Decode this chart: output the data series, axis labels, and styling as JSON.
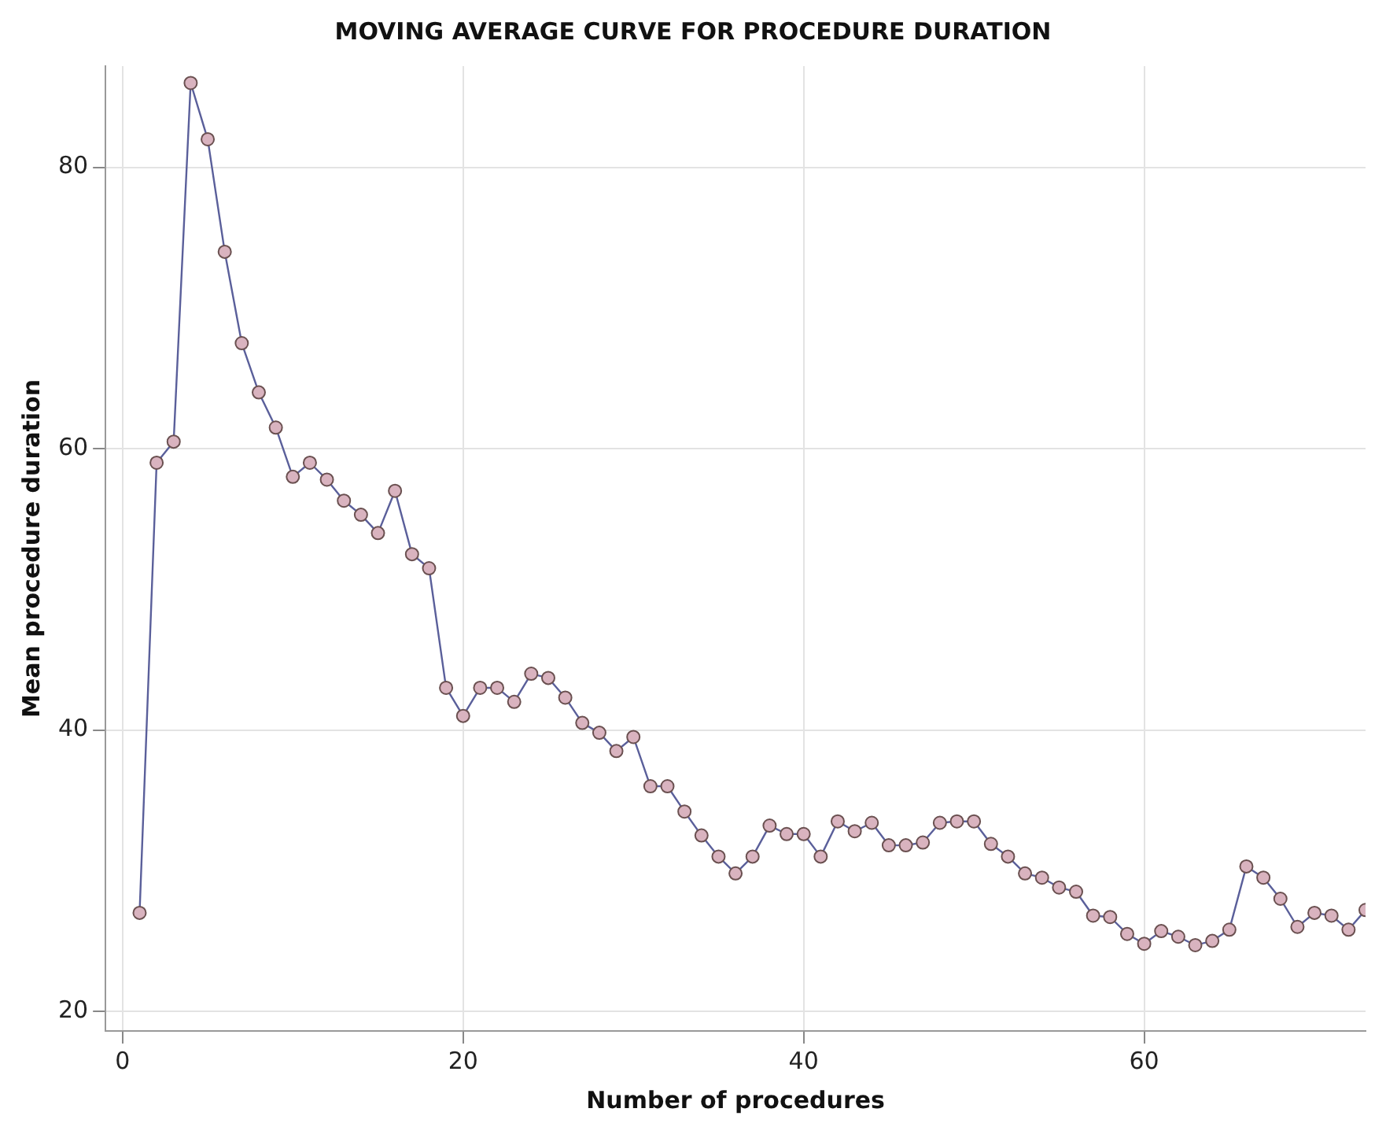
{
  "chart_data": {
    "type": "line",
    "title": "MOVING AVERAGE CURVE FOR PROCEDURE DURATION",
    "xlabel": "Number of procedures",
    "ylabel": "Mean procedure duration",
    "x": [
      1,
      2,
      3,
      4,
      5,
      6,
      7,
      8,
      9,
      10,
      11,
      12,
      13,
      14,
      15,
      16,
      17,
      18,
      19,
      20,
      21,
      22,
      23,
      24,
      25,
      26,
      27,
      28,
      29,
      30,
      31,
      32,
      33,
      34,
      35,
      36,
      37,
      38,
      39,
      40,
      41,
      42,
      43,
      44,
      45,
      46,
      47,
      48,
      49,
      50,
      51,
      52,
      53,
      54,
      55,
      56,
      57,
      58,
      59,
      60,
      61,
      62,
      63,
      64,
      65,
      66,
      67,
      68,
      69,
      70,
      71,
      72,
      73
    ],
    "series": [
      {
        "color": "#5a5f9a",
        "values": [
          27,
          59,
          60.5,
          86,
          82,
          74,
          67.5,
          64,
          61.5,
          58,
          59,
          57.8,
          56.3,
          55.3,
          54,
          57,
          52.5,
          51.5,
          43,
          41,
          43,
          43,
          42,
          44,
          43.7,
          42.3,
          40.5,
          39.8,
          38.5,
          39.5,
          36,
          36,
          34.2,
          32.5,
          31,
          29.8,
          31,
          33.2,
          32.6,
          32.6,
          31,
          33.5,
          32.8,
          33.4,
          31.8,
          31.8,
          32,
          33.4,
          33.5,
          33.5,
          31.9,
          31,
          29.8,
          29.5,
          28.8,
          28.5,
          26.8,
          26.7,
          25.5,
          24.8,
          25.7,
          25.3,
          24.7,
          25,
          25.8,
          30.3,
          29.5,
          28,
          26,
          27,
          26.8,
          25.8,
          27.2
        ]
      }
    ],
    "xlim": [
      -1,
      73
    ],
    "xticks": [
      0,
      20,
      40,
      60
    ],
    "ylim": [
      18.6,
      87.2
    ],
    "yticks": [
      20,
      40,
      60,
      80
    ],
    "grid": true,
    "marker": "circle",
    "line_style": "solid"
  }
}
